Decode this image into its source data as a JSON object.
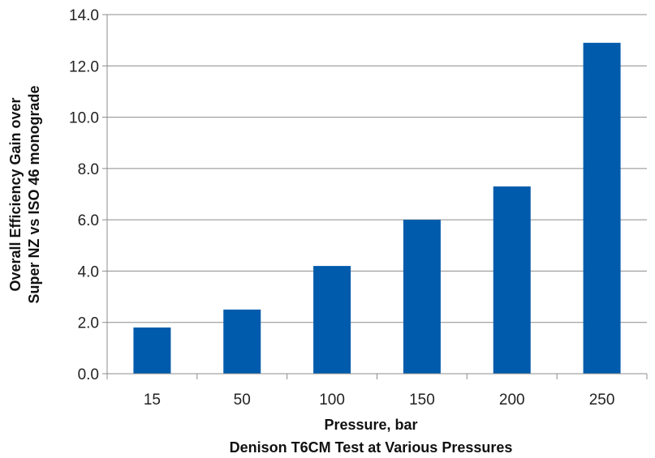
{
  "chart_data": {
    "type": "bar",
    "categories": [
      "15",
      "50",
      "100",
      "150",
      "200",
      "250"
    ],
    "values": [
      1.8,
      2.5,
      4.2,
      6.0,
      7.3,
      12.9
    ],
    "title": "Denison T6CM Test at Various Pressures",
    "xlabel": "Pressure, bar",
    "ylabel_lines": [
      "Overall Efficiency Gain over",
      "Super NZ vs ISO 46 monograde"
    ],
    "ylim": [
      0,
      14
    ],
    "yticks": [
      "0.0",
      "2.0",
      "4.0",
      "6.0",
      "8.0",
      "10.0",
      "12.0",
      "14.0"
    ],
    "ytick_values": [
      0,
      2,
      4,
      6,
      8,
      10,
      12,
      14
    ],
    "grid": true,
    "legend": "none",
    "bar_color": "#005BAC",
    "grid_color": "#8C8C8C"
  }
}
